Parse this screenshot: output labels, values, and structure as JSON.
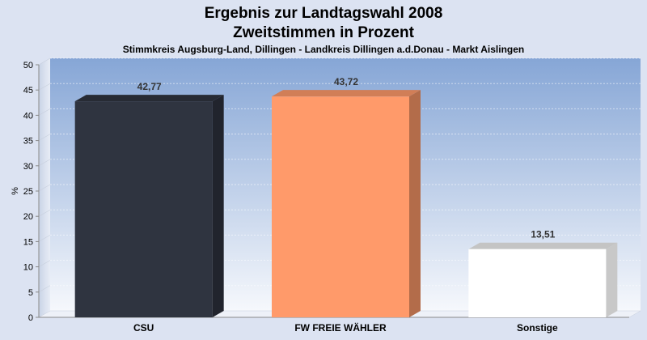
{
  "chart_data": {
    "type": "bar",
    "title": "Ergebnis zur Landtagswahl 2008",
    "title2": "Zweitstimmen in Prozent",
    "subtitle": "Stimmkreis Augsburg-Land, Dillingen - Landkreis Dillingen a.d.Donau - Markt Aislingen",
    "ylabel": "%",
    "xlabel": "",
    "ylim": [
      0,
      50
    ],
    "yticks": [
      0,
      5,
      10,
      15,
      20,
      25,
      30,
      35,
      40,
      45,
      50
    ],
    "categories": [
      "CSU",
      "FW FREIE WÄHLER",
      "Sonstige"
    ],
    "values": [
      42.77,
      43.72,
      13.51
    ],
    "value_labels": [
      "42,77",
      "43,72",
      "13,51"
    ],
    "colors": [
      "#2f3440",
      "#ff9a6a",
      "#ffffff"
    ],
    "grid": true,
    "legend": "none"
  }
}
